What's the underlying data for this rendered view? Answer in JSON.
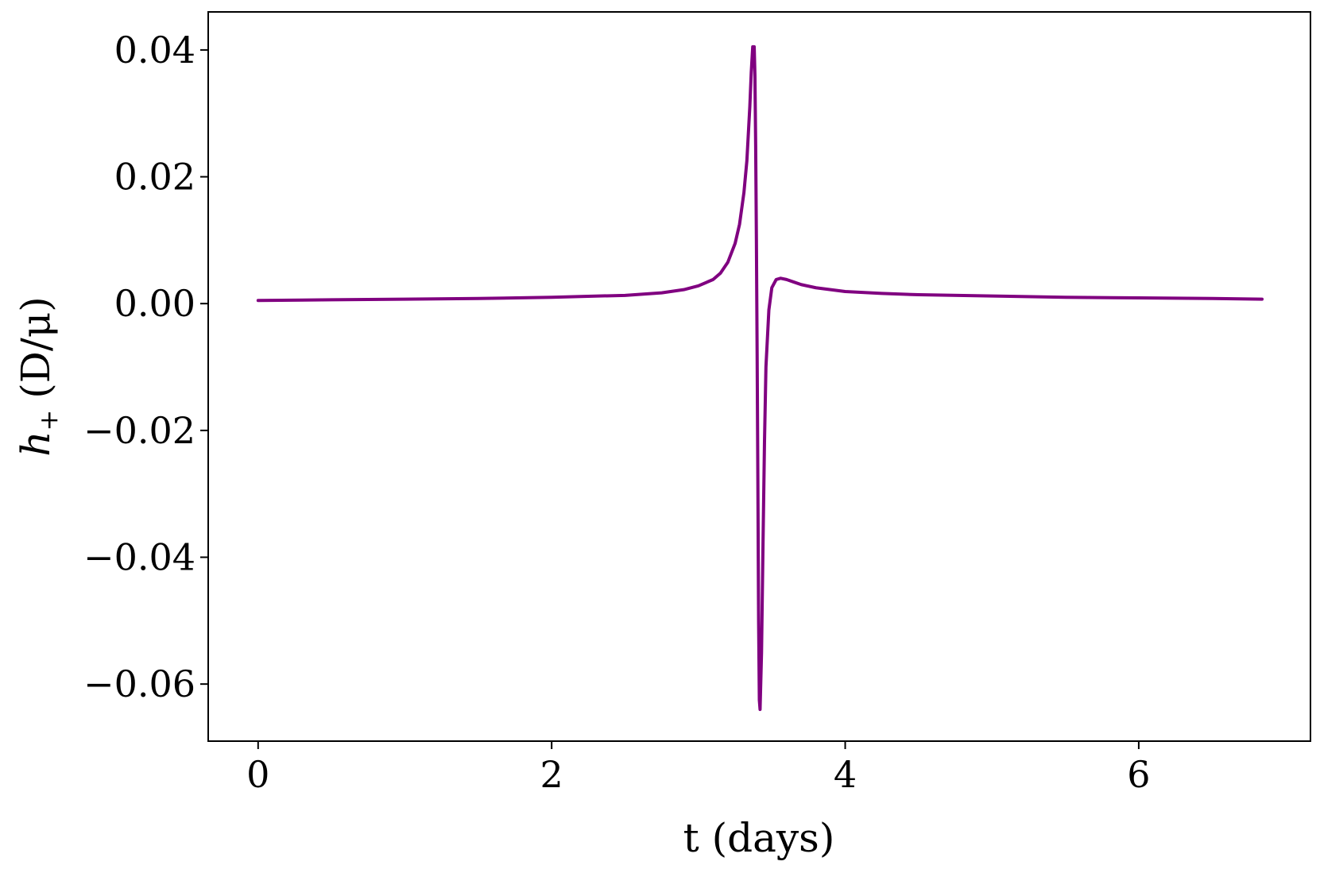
{
  "chart_data": {
    "type": "line",
    "xlabel": "t (days)",
    "ylabel": {
      "symbol": "h",
      "subscript": "+",
      "units": "(D/μ)"
    },
    "xlim": [
      -0.34,
      7.17
    ],
    "ylim": [
      -0.069,
      0.046
    ],
    "xticks": [
      {
        "value": 0,
        "label": "0"
      },
      {
        "value": 2,
        "label": "2"
      },
      {
        "value": 4,
        "label": "4"
      },
      {
        "value": 6,
        "label": "6"
      }
    ],
    "yticks": [
      {
        "value": 0.04,
        "label": "0.04"
      },
      {
        "value": 0.02,
        "label": "0.02"
      },
      {
        "value": 0.0,
        "label": "0.00"
      },
      {
        "value": -0.02,
        "label": "−0.02"
      },
      {
        "value": -0.04,
        "label": "−0.04"
      },
      {
        "value": -0.06,
        "label": "−0.06"
      }
    ],
    "grid": false,
    "series": [
      {
        "color": "#800080",
        "x": [
          0.0,
          0.5,
          1.0,
          1.5,
          2.0,
          2.5,
          2.75,
          2.9,
          3.0,
          3.1,
          3.15,
          3.2,
          3.25,
          3.28,
          3.31,
          3.33,
          3.35,
          3.36,
          3.37,
          3.38,
          3.385,
          3.39,
          3.395,
          3.4,
          3.405,
          3.41,
          3.415,
          3.42,
          3.43,
          3.44,
          3.45,
          3.46,
          3.48,
          3.5,
          3.53,
          3.56,
          3.6,
          3.65,
          3.7,
          3.8,
          3.9,
          4.0,
          4.25,
          4.5,
          5.0,
          5.5,
          6.0,
          6.5,
          6.84
        ],
        "y": [
          0.0005,
          0.0006,
          0.0007,
          0.0008,
          0.001,
          0.0013,
          0.0017,
          0.0022,
          0.0028,
          0.0038,
          0.0048,
          0.0065,
          0.0095,
          0.0125,
          0.0175,
          0.0225,
          0.031,
          0.0365,
          0.0405,
          0.0405,
          0.036,
          0.025,
          0.01,
          -0.008,
          -0.028,
          -0.05,
          -0.0625,
          -0.064,
          -0.055,
          -0.038,
          -0.022,
          -0.01,
          -0.001,
          0.0025,
          0.0038,
          0.004,
          0.0038,
          0.0034,
          0.003,
          0.0025,
          0.0022,
          0.0019,
          0.0016,
          0.0014,
          0.0012,
          0.001,
          0.0009,
          0.0008,
          0.0007
        ]
      }
    ]
  }
}
